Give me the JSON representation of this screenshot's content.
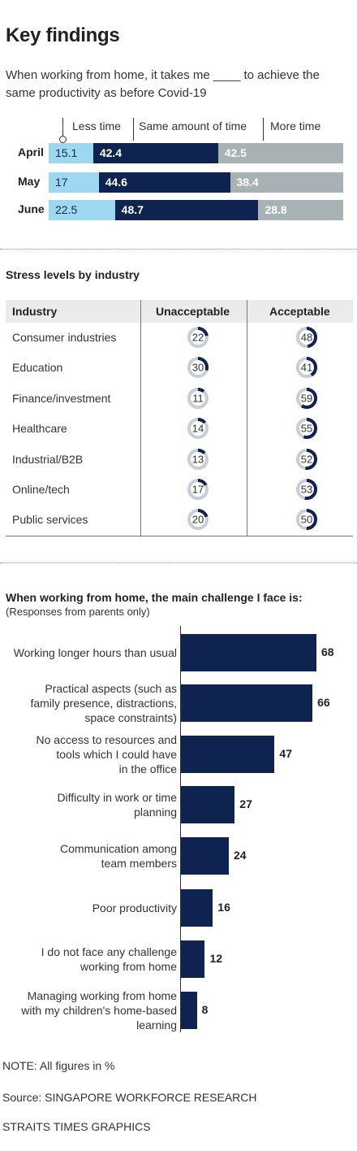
{
  "header": {
    "title": "Key findings",
    "question": "When working from home, it takes me ____ to achieve the same productivity as before Covid-19"
  },
  "colors": {
    "less": "#9ed7f0",
    "same": "#0f2350",
    "more": "#a8b1b3",
    "bar": "#0f2350",
    "donut_track": "#c7ced6",
    "donut_fill": "#0f2350"
  },
  "section2_title": "Stress levels by industry",
  "section3": {
    "title": "When working from home, the main challenge I face is:",
    "subtitle": "(Responses from parents only)"
  },
  "footer": {
    "note": "NOTE: All figures in %",
    "source": "Source: SINGAPORE WORKFORCE RESEARCH",
    "credit": "STRAITS TIMES GRAPHICS"
  },
  "chart_data": [
    {
      "type": "bar",
      "stacked": true,
      "orientation": "horizontal",
      "categories": [
        "April",
        "May",
        "June"
      ],
      "series": [
        {
          "name": "Less time",
          "values": [
            15.1,
            17,
            22.5
          ],
          "labels": [
            "15.1",
            "17",
            "22.5"
          ]
        },
        {
          "name": "Same amount of time",
          "values": [
            42.4,
            44.6,
            48.7
          ],
          "labels": [
            "42.4",
            "44.6",
            "48.7"
          ]
        },
        {
          "name": "More time",
          "values": [
            42.5,
            38.4,
            28.8
          ],
          "labels": [
            "42.5",
            "38.4",
            "28.8"
          ]
        }
      ],
      "xlim": [
        0,
        100
      ]
    },
    {
      "type": "table",
      "title": "Stress levels by industry",
      "columns": [
        "Industry",
        "Unacceptable",
        "Acceptable"
      ],
      "rows": [
        {
          "industry": "Consumer industries",
          "unacceptable": 22,
          "acceptable": 48,
          "u_label": "22",
          "a_label": "48"
        },
        {
          "industry": "Education",
          "unacceptable": 30,
          "acceptable": 41,
          "u_label": "30",
          "a_label": "41"
        },
        {
          "industry": "Finance/investment",
          "unacceptable": 11,
          "acceptable": 59,
          "u_label": "11",
          "a_label": "59"
        },
        {
          "industry": "Healthcare",
          "unacceptable": 14,
          "acceptable": 55,
          "u_label": "14",
          "a_label": "55"
        },
        {
          "industry": "Industrial/B2B",
          "unacceptable": 13,
          "acceptable": 52,
          "u_label": "13",
          "a_label": "52"
        },
        {
          "industry": "Online/tech",
          "unacceptable": 17,
          "acceptable": 53,
          "u_label": "17",
          "a_label": "53"
        },
        {
          "industry": "Public services",
          "unacceptable": 20,
          "acceptable": 50,
          "u_label": "20",
          "a_label": "50"
        }
      ]
    },
    {
      "type": "bar",
      "orientation": "horizontal",
      "title": "When working from home, the main challenge I face is:",
      "subtitle": "(Responses from parents only)",
      "categories": [
        [
          "Working longer hours than usual"
        ],
        [
          "Practical aspects (such as",
          "family presence, distractions,",
          "space constraints)"
        ],
        [
          "No access to resources and",
          "tools which I could have",
          "in the office"
        ],
        [
          "Difficulty in work or time",
          "planning"
        ],
        [
          "Communication among",
          "team members"
        ],
        [
          "Poor productivity"
        ],
        [
          "I do not face any challenge",
          "working from home"
        ],
        [
          "Managing working from home",
          "with my children's home-based",
          "learning"
        ]
      ],
      "values": [
        68,
        66,
        47,
        27,
        24,
        16,
        12,
        8
      ],
      "value_labels": [
        "68",
        "66",
        "47",
        "27",
        "24",
        "16",
        "12",
        "8"
      ]
    }
  ]
}
